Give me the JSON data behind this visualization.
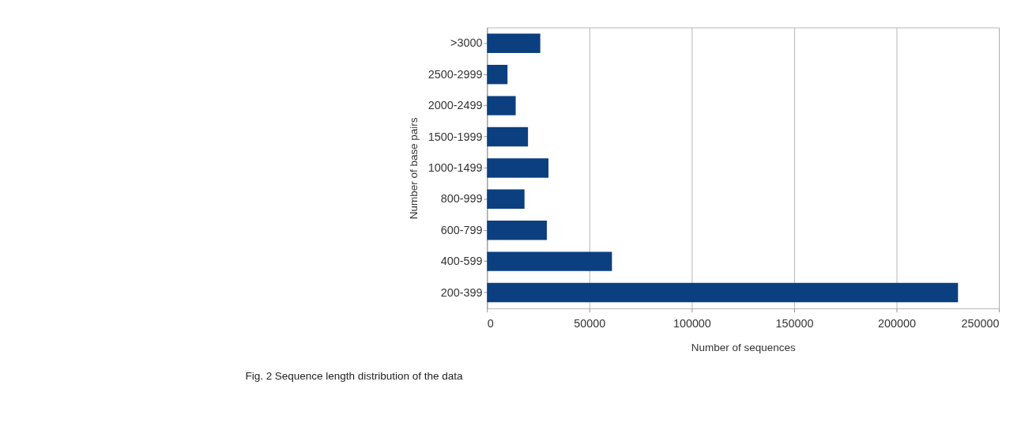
{
  "chart_data": {
    "type": "bar",
    "orientation": "horizontal",
    "categories": [
      ">3000",
      "2500-2999",
      "2000-2499",
      "1500-1999",
      "1000-1499",
      "800-999",
      "600-799",
      "400-599",
      "200-399"
    ],
    "values": [
      26000,
      10000,
      14000,
      20000,
      30000,
      18300,
      29200,
      61000,
      230000
    ],
    "color": "#0b3f80",
    "xlim": [
      0,
      250000
    ],
    "xticks": [
      0,
      50000,
      100000,
      150000,
      200000,
      250000
    ],
    "xlabel": "Number of sequences",
    "ylabel": "Number of base pairs",
    "grid": "x",
    "annotations": [
      "Fig. 2 Sequence length distribution of the data"
    ]
  }
}
